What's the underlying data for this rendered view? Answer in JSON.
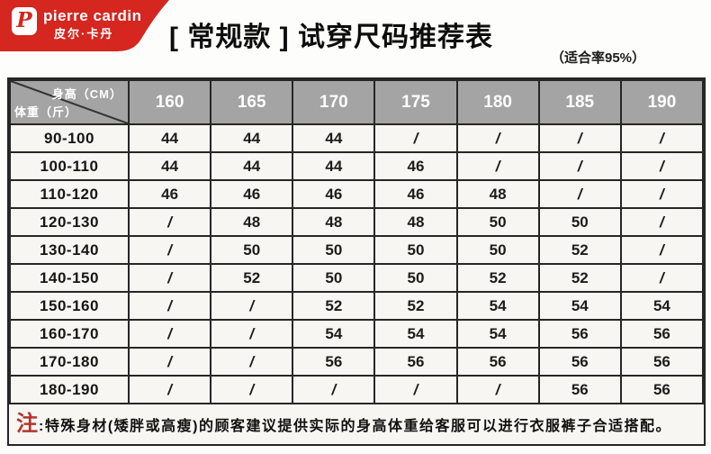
{
  "logo": {
    "monogram": "P",
    "brand": "pierre cardin",
    "brand_cn": "皮尔·卡丹"
  },
  "chart_data": {
    "type": "table",
    "title": "[ 常规款 ] 试穿尺码推荐表",
    "subtitle": "（适合率95%）",
    "corner": {
      "top": "身高（CM）",
      "bottom": "体重（斤）"
    },
    "columns": [
      "160",
      "165",
      "170",
      "175",
      "180",
      "185",
      "190"
    ],
    "rows": [
      {
        "weight": "90-100",
        "sizes": [
          "44",
          "44",
          "44",
          "/",
          "/",
          "/",
          "/"
        ]
      },
      {
        "weight": "100-110",
        "sizes": [
          "44",
          "44",
          "44",
          "46",
          "/",
          "/",
          "/"
        ]
      },
      {
        "weight": "110-120",
        "sizes": [
          "46",
          "46",
          "46",
          "46",
          "48",
          "/",
          "/"
        ]
      },
      {
        "weight": "120-130",
        "sizes": [
          "/",
          "48",
          "48",
          "48",
          "50",
          "50",
          "/"
        ]
      },
      {
        "weight": "130-140",
        "sizes": [
          "/",
          "50",
          "50",
          "50",
          "50",
          "52",
          "/"
        ]
      },
      {
        "weight": "140-150",
        "sizes": [
          "/",
          "52",
          "50",
          "50",
          "52",
          "52",
          "/"
        ]
      },
      {
        "weight": "150-160",
        "sizes": [
          "/",
          "/",
          "52",
          "52",
          "54",
          "54",
          "54"
        ]
      },
      {
        "weight": "160-170",
        "sizes": [
          "/",
          "/",
          "54",
          "54",
          "54",
          "56",
          "56"
        ]
      },
      {
        "weight": "170-180",
        "sizes": [
          "/",
          "/",
          "56",
          "56",
          "56",
          "56",
          "56"
        ]
      },
      {
        "weight": "180-190",
        "sizes": [
          "/",
          "/",
          "/",
          "/",
          "/",
          "56",
          "56"
        ]
      }
    ]
  },
  "note": {
    "prefix": "注",
    "text": ":特殊身材(矮胖或高瘦)的顾客建议提供实际的身高体重给客服可以进行衣服裤子合适搭配。"
  },
  "colors": {
    "brand_red": "#d5261f",
    "header_gray": "#a4a4a4",
    "border_dark": "#262626",
    "cell_bg": "#f7f6f3",
    "note_red": "#b5342c"
  }
}
